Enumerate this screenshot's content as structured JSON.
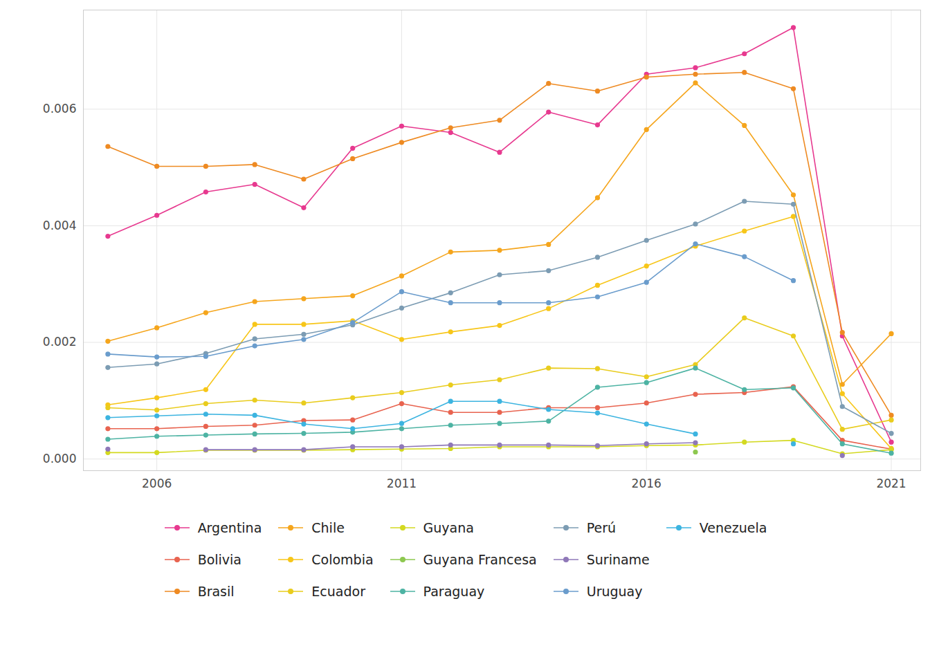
{
  "chart_data": {
    "type": "line",
    "x": [
      2005,
      2006,
      2007,
      2008,
      2009,
      2010,
      2011,
      2012,
      2013,
      2014,
      2015,
      2016,
      2017,
      2018,
      2019,
      2020,
      2021
    ],
    "xlim": [
      2004.5,
      2021.6
    ],
    "xticks": [
      2006,
      2011,
      2016,
      2021
    ],
    "ylim": [
      -0.0002,
      0.0077
    ],
    "yticks": [
      {
        "value": 0,
        "label": "0.000"
      },
      {
        "value": 0.002,
        "label": "0.002"
      },
      {
        "value": 0.004,
        "label": "0.004"
      },
      {
        "value": 0.006,
        "label": "0.006"
      }
    ],
    "grid": true,
    "marker": "circle",
    "series": [
      {
        "name": "Argentina",
        "color": "#e7398f",
        "values": [
          0.00382,
          0.00418,
          0.00458,
          0.00471,
          0.00431,
          0.00533,
          0.00571,
          0.0056,
          0.00526,
          0.00595,
          0.00573,
          0.0066,
          0.00671,
          0.00695,
          0.0074,
          0.00211,
          0.00029
        ]
      },
      {
        "name": "Bolivia",
        "color": "#e8634f",
        "values": [
          0.00052,
          0.00052,
          0.00056,
          0.00058,
          0.00066,
          0.00067,
          0.00095,
          0.0008,
          0.0008,
          0.00088,
          0.00088,
          0.00096,
          0.00111,
          0.00114,
          0.00124,
          0.00032,
          0.00017
        ]
      },
      {
        "name": "Brasil",
        "color": "#ee8a22",
        "values": [
          0.00536,
          0.00502,
          0.00502,
          0.00505,
          0.0048,
          0.00515,
          0.00543,
          0.00568,
          0.00581,
          0.00644,
          0.00631,
          0.00655,
          0.0066,
          0.00663,
          0.00635,
          0.00217,
          0.00075
        ]
      },
      {
        "name": "Chile",
        "color": "#f5a51c",
        "values": [
          0.00202,
          0.00225,
          0.00251,
          0.0027,
          0.00275,
          0.0028,
          0.00314,
          0.00355,
          0.00358,
          0.00368,
          0.00448,
          0.00565,
          0.00645,
          0.00572,
          0.00453,
          0.00128,
          0.00215
        ]
      },
      {
        "name": "Colombia",
        "color": "#f7c619",
        "values": [
          0.00093,
          0.00105,
          0.00119,
          0.00231,
          0.00231,
          0.00237,
          0.00205,
          0.00218,
          0.00229,
          0.00258,
          0.00298,
          0.00331,
          0.00365,
          0.00391,
          0.00416,
          0.00112,
          0.00018
        ]
      },
      {
        "name": "Ecuador",
        "color": "#e9cc1d",
        "values": [
          0.00088,
          0.00084,
          0.00095,
          0.00101,
          0.00096,
          0.00105,
          0.00114,
          0.00127,
          0.00136,
          0.00156,
          0.00155,
          0.00141,
          0.00162,
          0.00242,
          0.00211,
          0.00051,
          0.00067
        ]
      },
      {
        "name": "Guyana",
        "color": "#d3d920",
        "values": [
          0.00011,
          0.00011,
          0.00015,
          0.00015,
          0.00015,
          0.00016,
          0.00017,
          0.00018,
          0.00021,
          0.00021,
          0.00021,
          0.00023,
          0.00024,
          0.00029,
          0.00032,
          9e-05,
          0.00016
        ]
      },
      {
        "name": "Guyana Francesa",
        "color": "#8dc84f",
        "values": [
          null,
          null,
          null,
          null,
          null,
          null,
          null,
          null,
          null,
          null,
          null,
          null,
          0.00012,
          null,
          null,
          null,
          null
        ]
      },
      {
        "name": "Paraguay",
        "color": "#4db3a3",
        "values": [
          0.00034,
          0.00039,
          0.00041,
          0.00043,
          0.00044,
          0.00046,
          0.00052,
          0.00058,
          0.00061,
          0.00065,
          0.00123,
          0.00131,
          0.00156,
          0.00119,
          0.00122,
          0.00026,
          0.0001
        ]
      },
      {
        "name": "Perú",
        "color": "#7c9cb3",
        "values": [
          0.00157,
          0.00163,
          0.00181,
          0.00206,
          0.00214,
          0.0023,
          0.00259,
          0.00285,
          0.00316,
          0.00323,
          0.00346,
          0.00375,
          0.00403,
          0.00442,
          0.00437,
          0.0009,
          0.00044
        ]
      },
      {
        "name": "Suriname",
        "color": "#8f78b8",
        "values": [
          0.00017,
          null,
          0.00016,
          0.00016,
          0.00016,
          0.00021,
          0.00021,
          0.00024,
          0.00024,
          0.00024,
          0.00023,
          0.00026,
          0.00028,
          null,
          null,
          6e-05,
          null
        ]
      },
      {
        "name": "Uruguay",
        "color": "#6a9ccc",
        "values": [
          0.0018,
          0.00175,
          0.00176,
          0.00194,
          0.00205,
          0.00234,
          0.00287,
          0.00268,
          0.00268,
          0.00268,
          0.00278,
          0.00303,
          0.00369,
          0.00347,
          0.00306,
          null,
          null
        ]
      },
      {
        "name": "Venezuela",
        "color": "#3cb4e0",
        "values": [
          0.00071,
          0.00074,
          0.00077,
          0.00075,
          0.0006,
          0.00052,
          0.00061,
          0.00099,
          0.00099,
          0.00085,
          0.00079,
          0.0006,
          0.00043,
          null,
          0.00026,
          null,
          null
        ]
      }
    ]
  }
}
